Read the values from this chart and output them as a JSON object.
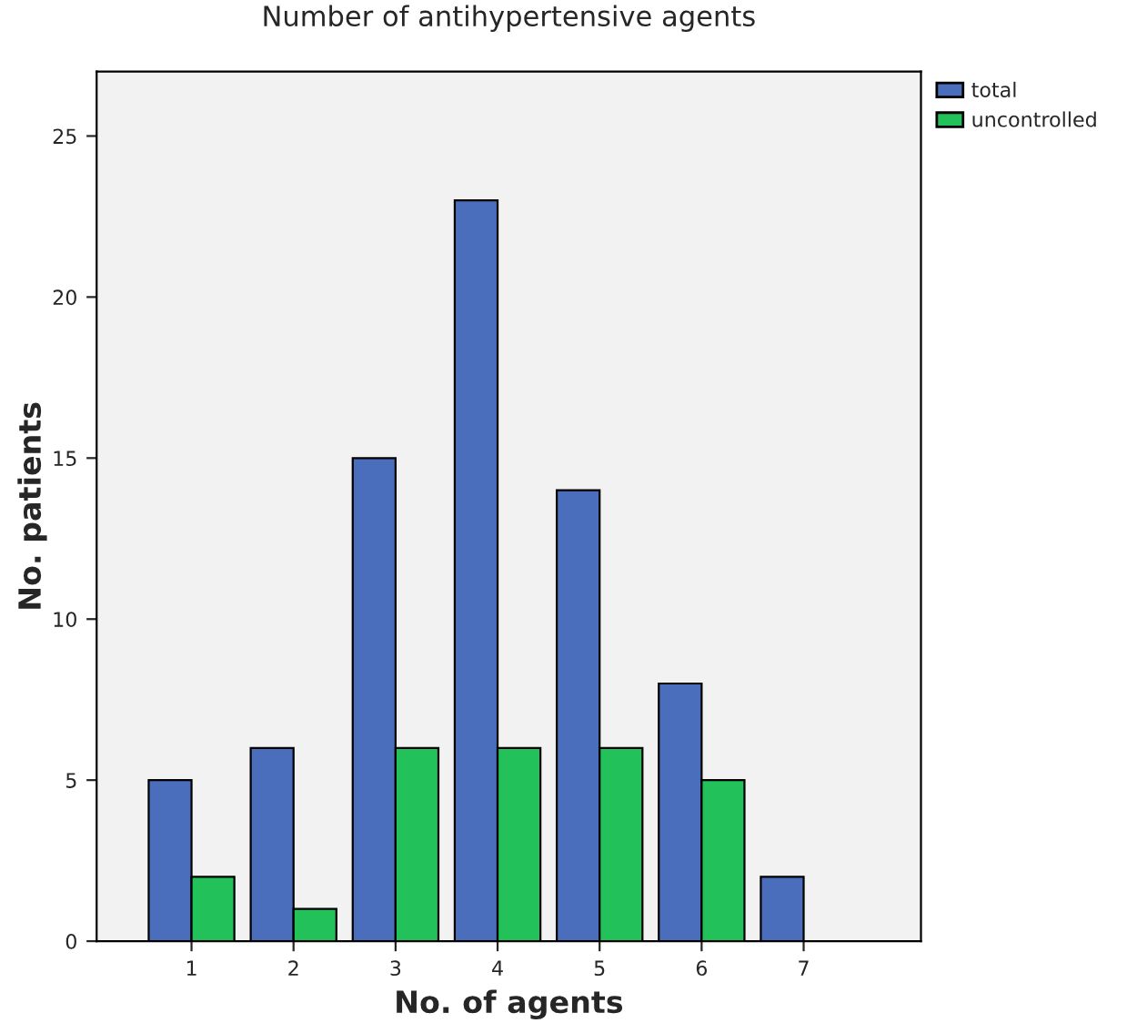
{
  "chart_data": {
    "type": "bar",
    "title": "Number of antihypertensive agents",
    "xlabel": "No. of agents",
    "ylabel": "No. patients",
    "categories": [
      "1",
      "2",
      "3",
      "4",
      "5",
      "6",
      "7"
    ],
    "series": [
      {
        "name": "total",
        "color": "#4a6ebc",
        "values": [
          5,
          6,
          15,
          23,
          14,
          8,
          2
        ]
      },
      {
        "name": "uncontrolled",
        "color": "#22c15a",
        "values": [
          2,
          1,
          6,
          6,
          6,
          5,
          null
        ]
      }
    ],
    "ylim": [
      0,
      27
    ],
    "yticks": [
      0,
      5,
      10,
      15,
      20,
      25
    ],
    "grid": false,
    "legend": "top right"
  }
}
